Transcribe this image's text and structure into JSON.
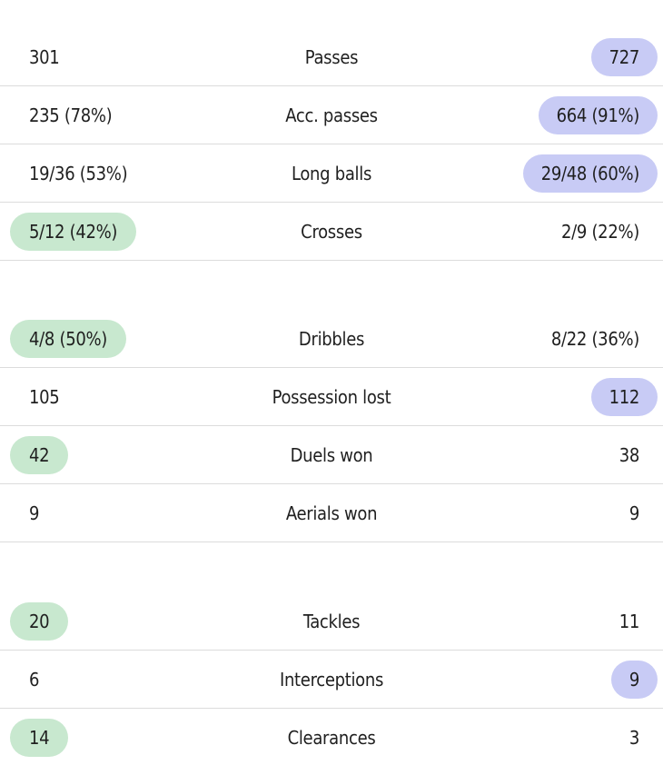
{
  "colors": {
    "home_highlight": "#c8e8cf",
    "away_highlight": "#c8cbf5",
    "divider": "#dcdcdc",
    "text": "#1f1f1f"
  },
  "groups": [
    {
      "rows": [
        {
          "label": "Passes",
          "home": "301",
          "away": "727",
          "winner": "away"
        },
        {
          "label": "Acc. passes",
          "home": "235 (78%)",
          "away": "664 (91%)",
          "winner": "away"
        },
        {
          "label": "Long balls",
          "home": "19/36 (53%)",
          "away": "29/48 (60%)",
          "winner": "away"
        },
        {
          "label": "Crosses",
          "home": "5/12 (42%)",
          "away": "2/9 (22%)",
          "winner": "home"
        }
      ]
    },
    {
      "rows": [
        {
          "label": "Dribbles",
          "home": "4/8 (50%)",
          "away": "8/22 (36%)",
          "winner": "home"
        },
        {
          "label": "Possession lost",
          "home": "105",
          "away": "112",
          "winner": "away"
        },
        {
          "label": "Duels won",
          "home": "42",
          "away": "38",
          "winner": "home"
        },
        {
          "label": "Aerials won",
          "home": "9",
          "away": "9",
          "winner": "none"
        }
      ]
    },
    {
      "rows": [
        {
          "label": "Tackles",
          "home": "20",
          "away": "11",
          "winner": "home"
        },
        {
          "label": "Interceptions",
          "home": "6",
          "away": "9",
          "winner": "away"
        },
        {
          "label": "Clearances",
          "home": "14",
          "away": "3",
          "winner": "home"
        }
      ]
    }
  ]
}
